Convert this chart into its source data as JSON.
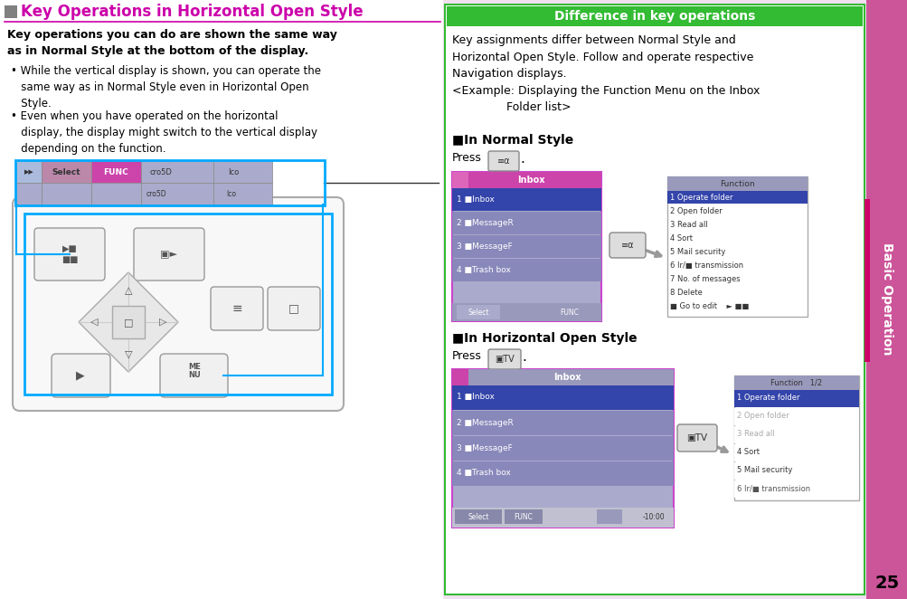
{
  "page_bg": "#f0e0f0",
  "content_bg": "#ffffff",
  "sidebar_bg": "#cc5599",
  "sidebar_text": "Basic Operation",
  "sidebar_text_color": "#ffffff",
  "title_color": "#cc00aa",
  "title_text": "Key Operations in Horizontal Open Style",
  "title_square_color": "#808080",
  "divider_color": "#cc00aa",
  "page_number": "25",
  "right_title_bg": "#33bb33",
  "right_title_text": "Difference in key operations",
  "right_title_text_color": "#ffffff",
  "right_panel_border": "#33bb33",
  "inbox_header_bg": "#7777aa",
  "inbox_sel_bg": "#3344aa",
  "inbox_row_bg": "#8888bb",
  "inbox_bg": "#aaaacc",
  "inbox_footer_bg": "#9999bb",
  "func_header_bg": "#9999bb",
  "func_sel_bg": "#3344aa",
  "func_sel_bg2": "#5566aa",
  "arrow_color": "#999999",
  "key_bg": "#dddddd",
  "key_border": "#888888",
  "blue_line": "#00aaff",
  "phone_border": "#cc44cc",
  "nav_bar_bg": "#9999bb",
  "nav_sel_bg": "#cc44cc",
  "nav_item_bg": "#7777aa"
}
